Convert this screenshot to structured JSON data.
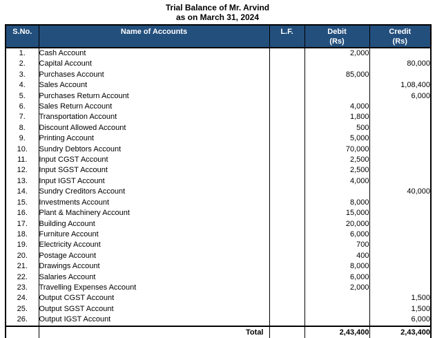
{
  "title": {
    "line1": "Trial Balance of Mr. Arvind",
    "line2": "as on March 31, 2024"
  },
  "colors": {
    "header_bg": "#234F7D",
    "header_text": "#FFFFFF",
    "border": "#000000"
  },
  "table": {
    "headers": {
      "sno": "S.No.",
      "name": "Name of Accounts",
      "lf": "L.F.",
      "debit": "Debit\n(Rs)",
      "credit": "Credit\n(Rs)"
    },
    "rows": [
      {
        "sno": "1.",
        "name": "Cash Account",
        "lf": "",
        "debit": "2,000",
        "credit": ""
      },
      {
        "sno": "2.",
        "name": "Capital Account",
        "lf": "",
        "debit": "",
        "credit": "80,000"
      },
      {
        "sno": "3.",
        "name": "Purchases Account",
        "lf": "",
        "debit": "85,000",
        "credit": ""
      },
      {
        "sno": "4.",
        "name": "Sales Account",
        "lf": "",
        "debit": "",
        "credit": "1,08,400"
      },
      {
        "sno": "5.",
        "name": "Purchases Return Account",
        "lf": "",
        "debit": "",
        "credit": "6,000"
      },
      {
        "sno": "6.",
        "name": "Sales Return Account",
        "lf": "",
        "debit": "4,000",
        "credit": ""
      },
      {
        "sno": "7.",
        "name": "Transportation Account",
        "lf": "",
        "debit": "1,800",
        "credit": ""
      },
      {
        "sno": "8.",
        "name": "Discount Allowed Account",
        "lf": "",
        "debit": "500",
        "credit": ""
      },
      {
        "sno": "9.",
        "name": "Printing Account",
        "lf": "",
        "debit": "5,000",
        "credit": ""
      },
      {
        "sno": "10.",
        "name": "Sundry Debtors Account",
        "lf": "",
        "debit": "70,000",
        "credit": ""
      },
      {
        "sno": "11.",
        "name": "Input CGST Account",
        "lf": "",
        "debit": "2,500",
        "credit": ""
      },
      {
        "sno": "12.",
        "name": "Input SGST Account",
        "lf": "",
        "debit": "2,500",
        "credit": ""
      },
      {
        "sno": "13.",
        "name": "Input IGST Account",
        "lf": "",
        "debit": "4,000",
        "credit": ""
      },
      {
        "sno": "14.",
        "name": "Sundry Creditors Account",
        "lf": "",
        "debit": "",
        "credit": "40,000"
      },
      {
        "sno": "15.",
        "name": "Investments Account",
        "lf": "",
        "debit": "8,000",
        "credit": ""
      },
      {
        "sno": "16.",
        "name": "Plant & Machinery Account",
        "lf": "",
        "debit": "15,000",
        "credit": ""
      },
      {
        "sno": "17.",
        "name": "Building Account",
        "lf": "",
        "debit": "20,000",
        "credit": ""
      },
      {
        "sno": "18.",
        "name": "Furniture Account",
        "lf": "",
        "debit": "6,000",
        "credit": ""
      },
      {
        "sno": "19.",
        "name": "Electricity Account",
        "lf": "",
        "debit": "700",
        "credit": ""
      },
      {
        "sno": "20.",
        "name": "Postage Account",
        "lf": "",
        "debit": "400",
        "credit": ""
      },
      {
        "sno": "21.",
        "name": "Drawings Account",
        "lf": "",
        "debit": "8,000",
        "credit": ""
      },
      {
        "sno": "22.",
        "name": "Salaries Account",
        "lf": "",
        "debit": "6,000",
        "credit": ""
      },
      {
        "sno": "23.",
        "name": "Travelling Expenses Account",
        "lf": "",
        "debit": "2,000",
        "credit": ""
      },
      {
        "sno": "24.",
        "name": "Output CGST Account",
        "lf": "",
        "debit": "",
        "credit": "1,500"
      },
      {
        "sno": "25.",
        "name": "Output SGST Account",
        "lf": "",
        "debit": "",
        "credit": "1,500"
      },
      {
        "sno": "26.",
        "name": "Output IGST Account",
        "lf": "",
        "debit": "",
        "credit": "6,000"
      }
    ],
    "total": {
      "label": "Total",
      "debit": "2,43,400",
      "credit": "2,43,400"
    }
  }
}
